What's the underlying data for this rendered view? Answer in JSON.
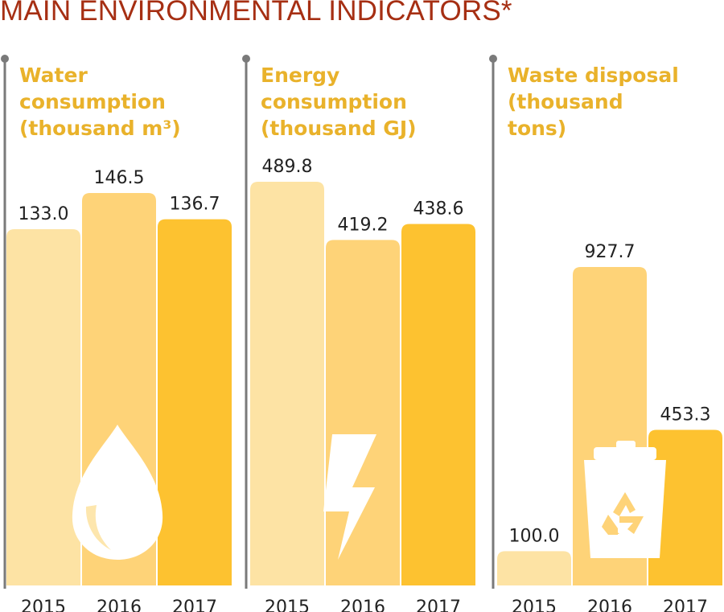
{
  "title": "MAIN ENVIRONMENTAL INDICATORS*",
  "colors": {
    "title": "#a62f13",
    "panel_title": "#e9b22b",
    "axis_line": "#7a7a7a",
    "bar_2015": "#fde3a4",
    "bar_2016": "#fed378",
    "bar_2017": "#fdc230",
    "icon": "#ffffff",
    "text": "#222222"
  },
  "chart_data": [
    {
      "type": "bar",
      "title_lines": [
        "Water",
        "consumption",
        "(thousand m³)"
      ],
      "categories": [
        "2015",
        "2016",
        "2017"
      ],
      "values": [
        133.0,
        146.5,
        136.7
      ],
      "value_labels": [
        "133.0",
        "146.5",
        "136.7"
      ],
      "icon": "water-drop-icon",
      "ylim": [
        0,
        146.5
      ]
    },
    {
      "type": "bar",
      "title_lines": [
        "Energy",
        "consumption",
        "(thousand GJ)"
      ],
      "categories": [
        "2015",
        "2016",
        "2017"
      ],
      "values": [
        489.8,
        419.2,
        438.6
      ],
      "value_labels": [
        "489.8",
        "419.2",
        "438.6"
      ],
      "icon": "lightning-bolt-icon",
      "ylim": [
        0,
        489.8
      ]
    },
    {
      "type": "bar",
      "title_lines": [
        "Waste disposal",
        "(thousand",
        "tons)"
      ],
      "categories": [
        "2015",
        "2016",
        "2017"
      ],
      "values": [
        100.0,
        927.7,
        453.3
      ],
      "value_labels": [
        "100.0",
        "927.7",
        "453.3"
      ],
      "icon": "recycle-bin-icon",
      "ylim": [
        0,
        927.7
      ]
    }
  ]
}
